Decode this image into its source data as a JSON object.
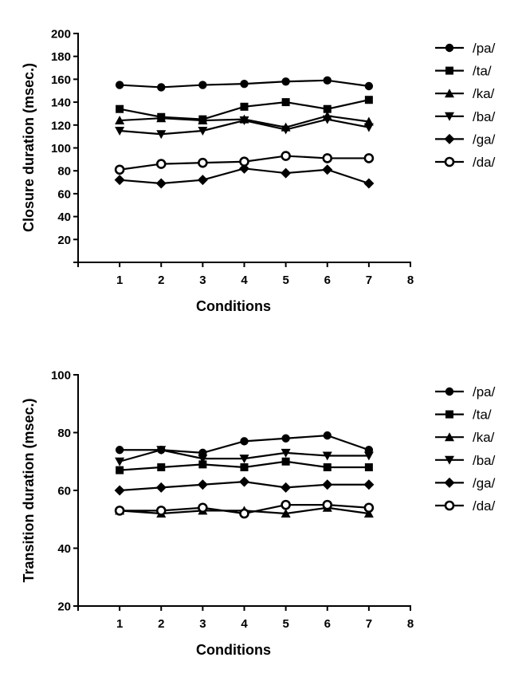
{
  "chart_data": [
    {
      "type": "line",
      "title": "",
      "xlabel": "Conditions",
      "ylabel": "Closure duration (msec.)",
      "xlim": [
        0,
        8
      ],
      "ylim": [
        0,
        200
      ],
      "xticks": [
        1,
        2,
        3,
        4,
        5,
        6,
        7,
        8
      ],
      "yticks": [
        20,
        40,
        60,
        80,
        100,
        120,
        140,
        160,
        180,
        200
      ],
      "grid": false,
      "legend_position": "right",
      "x": [
        1,
        2,
        3,
        4,
        5,
        6,
        7
      ],
      "series": [
        {
          "name": "/pa/",
          "marker": "circle",
          "values": [
            155,
            153,
            155,
            156,
            158,
            159,
            154
          ]
        },
        {
          "name": "/ta/",
          "marker": "square",
          "values": [
            134,
            127,
            125,
            136,
            140,
            134,
            142
          ]
        },
        {
          "name": "/ka/",
          "marker": "triangle-up",
          "values": [
            124,
            126,
            124,
            125,
            118,
            128,
            123
          ]
        },
        {
          "name": "/ba/",
          "marker": "triangle-down",
          "values": [
            115,
            112,
            115,
            124,
            116,
            125,
            118
          ]
        },
        {
          "name": "/ga/",
          "marker": "diamond",
          "values": [
            72,
            69,
            72,
            82,
            78,
            81,
            69
          ]
        },
        {
          "name": "/da/",
          "marker": "open-circle",
          "values": [
            81,
            86,
            87,
            88,
            93,
            91,
            91
          ]
        }
      ]
    },
    {
      "type": "line",
      "title": "",
      "xlabel": "Conditions",
      "ylabel": "Transition duration (msec.)",
      "xlim": [
        0,
        8
      ],
      "ylim": [
        20,
        100
      ],
      "xticks": [
        1,
        2,
        3,
        4,
        5,
        6,
        7,
        8
      ],
      "yticks": [
        20,
        40,
        60,
        80,
        100
      ],
      "grid": false,
      "legend_position": "right",
      "x": [
        1,
        2,
        3,
        4,
        5,
        6,
        7
      ],
      "series": [
        {
          "name": "/pa/",
          "marker": "circle",
          "values": [
            74,
            74,
            73,
            77,
            78,
            79,
            74
          ]
        },
        {
          "name": "/ta/",
          "marker": "square",
          "values": [
            67,
            68,
            69,
            68,
            70,
            68,
            68
          ]
        },
        {
          "name": "/ka/",
          "marker": "triangle-up",
          "values": [
            53,
            52,
            53,
            53,
            52,
            54,
            52
          ]
        },
        {
          "name": "/ba/",
          "marker": "triangle-down",
          "values": [
            70,
            74,
            71,
            71,
            73,
            72,
            72
          ]
        },
        {
          "name": "/ga/",
          "marker": "diamond",
          "values": [
            60,
            61,
            62,
            63,
            61,
            62,
            62
          ]
        },
        {
          "name": "/da/",
          "marker": "open-circle",
          "values": [
            53,
            53,
            54,
            52,
            55,
            55,
            54
          ]
        }
      ]
    }
  ]
}
